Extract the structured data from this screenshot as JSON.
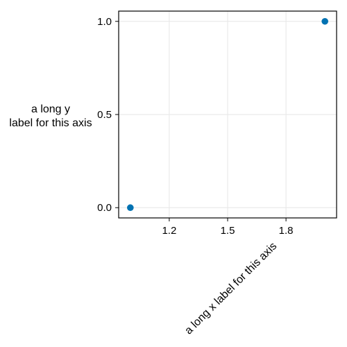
{
  "chart_data": {
    "type": "scatter",
    "xlabel": "a long x label for this axis",
    "ylabel_lines": [
      "a long y",
      "label for this axis"
    ],
    "xlim": [
      1.05,
      2.2
    ],
    "ylim": [
      -0.055,
      1.055
    ],
    "xticks": [
      1.2,
      1.5,
      1.8
    ],
    "xtick_labels": [
      "1.2",
      "1.5",
      "1.8"
    ],
    "yticks": [
      0.0,
      0.5,
      1.0
    ],
    "ytick_labels": [
      "0.0",
      "0.5",
      "1.0"
    ],
    "grid": true,
    "series": [
      {
        "color": "#0072b2",
        "points": [
          {
            "x": 1.0,
            "y": 0.0
          },
          {
            "x": 2.0,
            "y": 1.0
          }
        ]
      }
    ]
  }
}
